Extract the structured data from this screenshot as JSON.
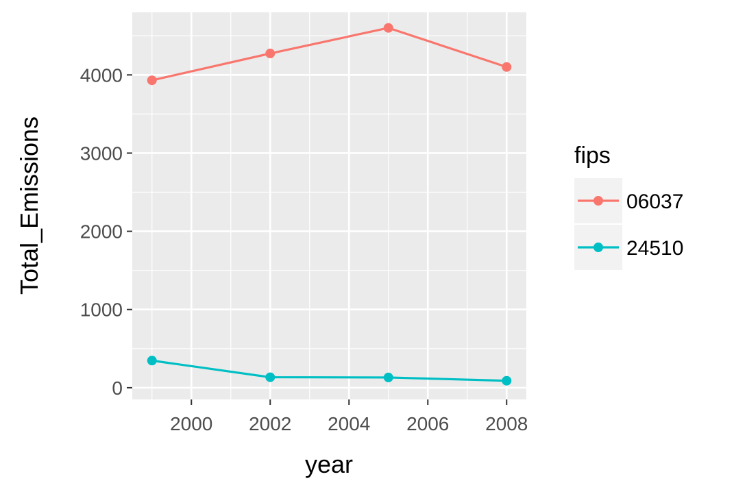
{
  "chart_data": {
    "type": "line",
    "title": "",
    "xlabel": "year",
    "ylabel": "Total_Emissions",
    "xlim": [
      1998.5,
      2008.5
    ],
    "ylim": [
      -150,
      4800
    ],
    "x_ticks": [
      2000,
      2002,
      2004,
      2006,
      2008
    ],
    "y_ticks": [
      0,
      1000,
      2000,
      3000,
      4000
    ],
    "x": [
      1999,
      2002,
      2005,
      2008
    ],
    "grid": true,
    "legend": {
      "title": "fips",
      "position": "right"
    },
    "series": [
      {
        "name": "06037",
        "color": "#F8766D",
        "values": [
          3931,
          4274,
          4601,
          4101
        ]
      },
      {
        "name": "24510",
        "color": "#00BFC4",
        "values": [
          347,
          134,
          131,
          89
        ]
      }
    ]
  },
  "colors": {
    "panel_background": "#EBEBEB",
    "grid": "#FFFFFF",
    "legend_key_background": "#F2F2F2"
  }
}
